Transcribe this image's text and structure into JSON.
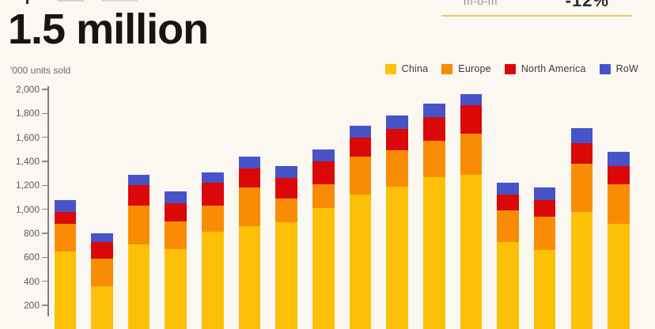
{
  "header": {
    "title": "1.5 million",
    "stat_label": "m-o-m",
    "stat_value": "-12%",
    "underline_color": "#EDC75F"
  },
  "chart_data": {
    "type": "bar",
    "stacked": true,
    "headline": "1.5 million",
    "ylabel": "'000 units sold",
    "ylim": [
      0,
      2000
    ],
    "ytick_interval": 200,
    "ytick_labels": [
      "2,000",
      "1,800",
      "1,600",
      "1,400",
      "1,200",
      "1,000",
      "800",
      "600",
      "400",
      "200"
    ],
    "grid": false,
    "legend_position": "top-right",
    "x_axis_labels": "cropped out of view (16 monthly bars)",
    "bar_count": 16,
    "series": [
      {
        "name": "China",
        "color": "#FCC106",
        "values": [
          650,
          360,
          710,
          670,
          810,
          860,
          890,
          1010,
          1120,
          1190,
          1270,
          1290,
          730,
          660,
          980,
          880
        ]
      },
      {
        "name": "Europe",
        "color": "#F98C05",
        "values": [
          230,
          230,
          320,
          230,
          220,
          320,
          200,
          200,
          320,
          300,
          300,
          340,
          260,
          280,
          400,
          330
        ]
      },
      {
        "name": "North America",
        "color": "#DB0808",
        "values": [
          100,
          140,
          170,
          150,
          190,
          160,
          170,
          190,
          160,
          180,
          200,
          240,
          130,
          140,
          170,
          150
        ]
      },
      {
        "name": "RoW",
        "color": "#4754C8",
        "values": [
          100,
          70,
          90,
          100,
          90,
          100,
          100,
          100,
          100,
          110,
          110,
          90,
          100,
          100,
          130,
          120
        ]
      }
    ],
    "totals": [
      1080,
      800,
      1290,
      1150,
      1310,
      1440,
      1360,
      1500,
      1700,
      1780,
      1880,
      1960,
      1220,
      1180,
      1680,
      1480
    ]
  }
}
